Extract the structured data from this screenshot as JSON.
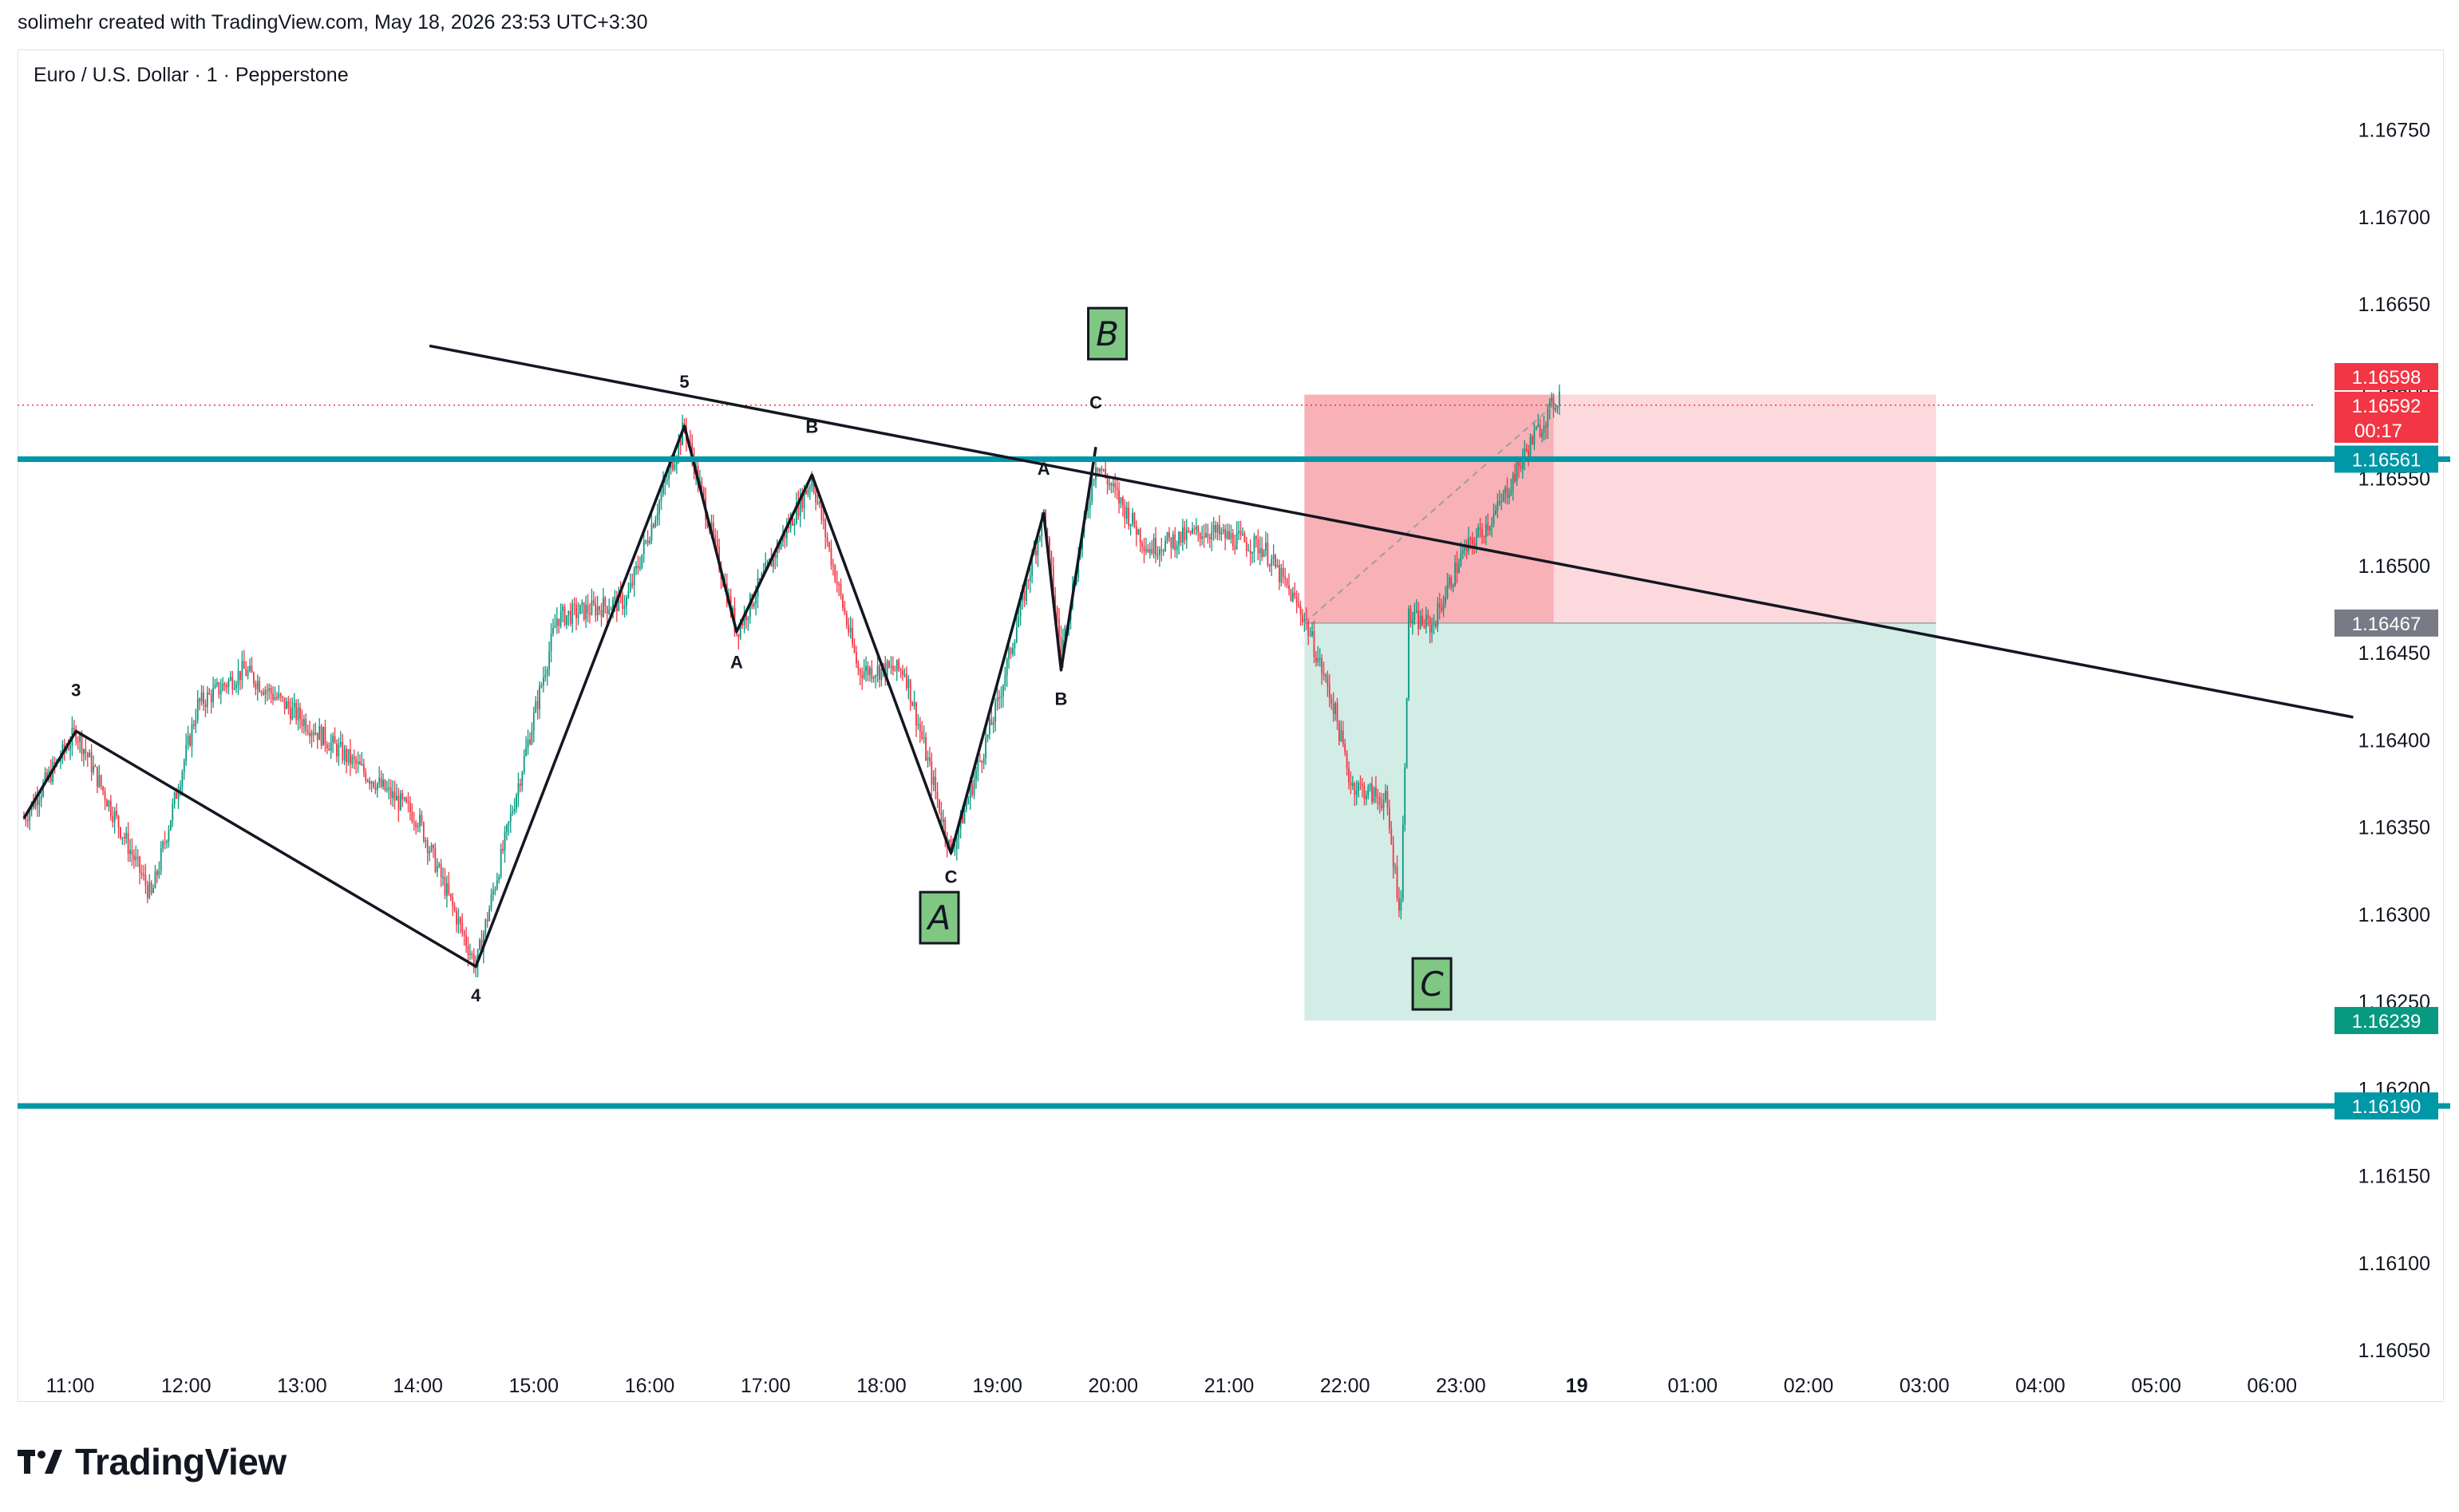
{
  "header": {
    "credit": "solimehr created with TradingView.com, May 18, 2026 23:53 UTC+3:30"
  },
  "symbol": {
    "title": "Euro / U.S. Dollar · 1 · Pepperstone"
  },
  "brand": {
    "name": "TradingView",
    "icon": "tradingview-logo-icon"
  },
  "colors": {
    "up": "#089981",
    "down": "#f23645",
    "level": "#0097a7",
    "stop_zone": "#f7a9b0",
    "stop_zone_light": "#fcd9dc",
    "target_zone": "#d2ece6",
    "wave_label_bg": "#81c784",
    "entry_gray": "#787b86"
  },
  "chart_data": {
    "type": "candlestick",
    "timeframe": "1",
    "x_ticks": [
      "11:00",
      "12:00",
      "13:00",
      "14:00",
      "15:00",
      "16:00",
      "17:00",
      "18:00",
      "19:00",
      "20:00",
      "21:00",
      "22:00",
      "23:00",
      "19",
      "01:00",
      "02:00",
      "03:00",
      "04:00",
      "05:00",
      "06:00"
    ],
    "y_ticks": [
      "1.16750",
      "1.16700",
      "1.16650",
      "1.16600",
      "1.16550",
      "1.16500",
      "1.16450",
      "1.16400",
      "1.16350",
      "1.16300",
      "1.16250",
      "1.16200",
      "1.16150",
      "1.16100",
      "1.16050"
    ],
    "ylim": [
      1.16044,
      1.1678
    ],
    "x_hours_range": [
      10.6,
      30.95
    ],
    "price_anchors": [
      {
        "t": 10.6,
        "p": 1.16355
      },
      {
        "t": 11.05,
        "p": 1.16405
      },
      {
        "t": 11.7,
        "p": 1.1631
      },
      {
        "t": 12.1,
        "p": 1.1642
      },
      {
        "t": 12.5,
        "p": 1.1644
      },
      {
        "t": 13.3,
        "p": 1.16395
      },
      {
        "t": 14.0,
        "p": 1.16355
      },
      {
        "t": 14.5,
        "p": 1.1627
      },
      {
        "t": 15.2,
        "p": 1.1647
      },
      {
        "t": 15.8,
        "p": 1.1648
      },
      {
        "t": 16.3,
        "p": 1.1658
      },
      {
        "t": 16.75,
        "p": 1.16462
      },
      {
        "t": 17.4,
        "p": 1.1655
      },
      {
        "t": 17.8,
        "p": 1.1644
      },
      {
        "t": 18.2,
        "p": 1.1644
      },
      {
        "t": 18.6,
        "p": 1.16335
      },
      {
        "t": 19.0,
        "p": 1.1642
      },
      {
        "t": 19.4,
        "p": 1.1653
      },
      {
        "t": 19.55,
        "p": 1.1645
      },
      {
        "t": 19.85,
        "p": 1.1656
      },
      {
        "t": 20.3,
        "p": 1.1651
      },
      {
        "t": 20.8,
        "p": 1.1652
      },
      {
        "t": 21.3,
        "p": 1.1651
      },
      {
        "t": 21.65,
        "p": 1.1647
      },
      {
        "t": 21.9,
        "p": 1.1642
      },
      {
        "t": 22.05,
        "p": 1.16375
      },
      {
        "t": 22.35,
        "p": 1.16365
      },
      {
        "t": 22.48,
        "p": 1.163
      },
      {
        "t": 22.55,
        "p": 1.1647
      },
      {
        "t": 22.75,
        "p": 1.16465
      },
      {
        "t": 23.0,
        "p": 1.16505
      },
      {
        "t": 23.3,
        "p": 1.1653
      },
      {
        "t": 23.6,
        "p": 1.1657
      },
      {
        "t": 23.85,
        "p": 1.16598
      }
    ],
    "price_labels": [
      {
        "text": "1.16598",
        "price": 1.16598,
        "color": "#f23645"
      },
      {
        "text": "1.16592",
        "price": 1.16592,
        "color": "#f23645",
        "sub": "00:17"
      },
      {
        "text": "1.16561",
        "price": 1.16561,
        "color": "#0097a7"
      },
      {
        "text": "1.16467",
        "price": 1.16467,
        "color": "#787b86"
      },
      {
        "text": "1.16239",
        "price": 1.16239,
        "color": "#089981"
      },
      {
        "text": "1.16190",
        "price": 1.1619,
        "color": "#0097a7"
      }
    ],
    "horizontal_levels": [
      1.16561,
      1.1619
    ],
    "last_price": 1.16592,
    "position": {
      "start_t": 21.65,
      "end_t": 27.1,
      "filled_end_t": 23.8,
      "entry": 1.16467,
      "stop": 1.16598,
      "target": 1.16239
    },
    "trendlines": [
      {
        "t1": 14.1,
        "p1": 1.16626,
        "t2": 30.7,
        "p2": 1.16413
      },
      {
        "t1": 21.65,
        "p1": 1.16467,
        "t2": 23.8,
        "p2": 1.16592,
        "dashed": true
      }
    ],
    "wave_path": [
      {
        "t": 10.6,
        "p": 1.16355
      },
      {
        "t": 11.05,
        "p": 1.16405
      },
      {
        "t": 14.5,
        "p": 1.1627
      },
      {
        "t": 16.3,
        "p": 1.1658
      },
      {
        "t": 16.75,
        "p": 1.16462
      },
      {
        "t": 17.4,
        "p": 1.16552
      },
      {
        "t": 18.6,
        "p": 1.16335
      },
      {
        "t": 19.4,
        "p": 1.1653
      },
      {
        "t": 19.55,
        "p": 1.1644
      },
      {
        "t": 19.85,
        "p": 1.16568
      }
    ],
    "wave_labels": [
      {
        "text": "3",
        "t": 11.05,
        "p": 1.16425
      },
      {
        "text": "4",
        "t": 14.5,
        "p": 1.1625
      },
      {
        "text": "5",
        "t": 16.3,
        "p": 1.16602
      },
      {
        "text": "A",
        "t": 16.75,
        "p": 1.16441
      },
      {
        "text": "B",
        "t": 17.4,
        "p": 1.16576
      },
      {
        "text": "C",
        "t": 18.6,
        "p": 1.16318
      },
      {
        "text": "A",
        "t": 19.4,
        "p": 1.16552
      },
      {
        "text": "B",
        "t": 19.55,
        "p": 1.1642
      },
      {
        "text": "C",
        "t": 19.85,
        "p": 1.1659
      }
    ],
    "wave_boxes": [
      {
        "text": "B",
        "t": 19.95,
        "p": 1.16633
      },
      {
        "text": "A",
        "t": 18.5,
        "p": 1.16298
      },
      {
        "text": "C",
        "t": 22.75,
        "p": 1.1626
      }
    ]
  }
}
